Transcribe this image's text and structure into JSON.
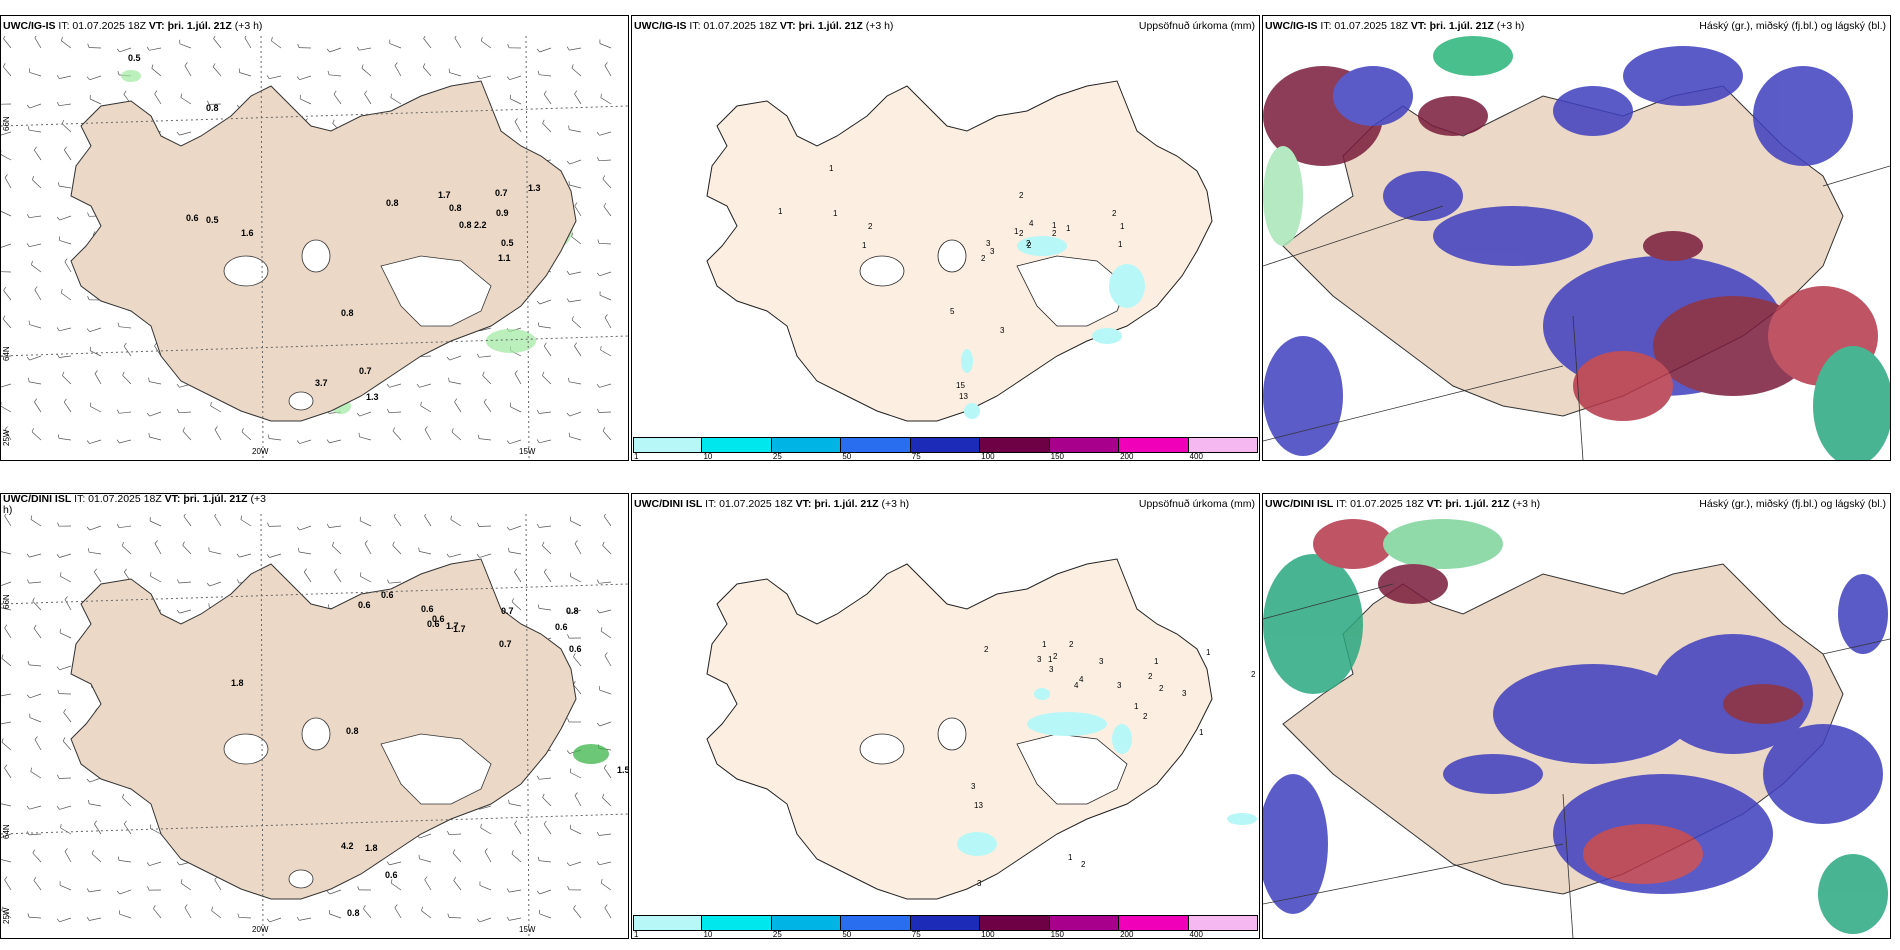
{
  "panels": {
    "p1": {
      "model": "UWC/IG-IS",
      "it": "IT: 01.07.2025 18Z",
      "vt_label": "VT:",
      "vt_value": "þri. 1.júl. 21Z",
      "offset": "(+3 h)"
    },
    "p2": {
      "model": "UWC/IG-IS",
      "it": "IT: 01.07.2025 18Z",
      "vt_label": "VT:",
      "vt_value": "þri. 1.júl. 21Z",
      "offset": "(+3 h)",
      "right": "Uppsöfnuð úrkoma (mm)"
    },
    "p3": {
      "model": "UWC/IG-IS",
      "it": "IT: 01.07.2025 18Z",
      "vt_label": "VT:",
      "vt_value": "þri. 1.júl. 21Z",
      "offset": "(+3 h)",
      "right": "Háský (gr.), miðský (fj.bl.) og lágský (bl.)"
    },
    "p4": {
      "model": "UWC/DINI ISL",
      "it": "IT: 01.07.2025 18Z",
      "vt_label": "VT:",
      "vt_value": "þri. 1.júl. 21Z",
      "offset": "(+3 h)"
    },
    "p5": {
      "model": "UWC/DINI ISL",
      "it": "IT: 01.07.2025 18Z",
      "vt_label": "VT:",
      "vt_value": "þri. 1.júl. 21Z",
      "offset": "(+3 h)",
      "right": "Uppsöfnuð úrkoma (mm)"
    },
    "p6": {
      "model": "UWC/DINI ISL",
      "it": "IT: 01.07.2025 18Z",
      "vt_label": "VT:",
      "vt_value": "þri. 1.júl. 21Z",
      "offset": "(+3 h)",
      "right": "Háský (gr.), miðský (fj.bl.) og lágský (bl.)"
    }
  },
  "axis": {
    "lon1": "20W",
    "lon2": "15W",
    "lat1": "66N",
    "lat2": "64N",
    "lon3": "25W"
  },
  "colorbar": {
    "labels": [
      "1",
      "10",
      "25",
      "50",
      "75",
      "100",
      "150",
      "200",
      "400"
    ],
    "colors": [
      "#b7f7f7",
      "#00e8ee",
      "#00b4e6",
      "#2a6ef0",
      "#1c2bb8",
      "#6e0046",
      "#a8008c",
      "#f000b8",
      "#f5b8f0"
    ]
  },
  "wind_labels_top": [
    "0.5",
    "0.8",
    "0.6",
    "0.5",
    "1.6",
    "0.8",
    "1.7",
    "0.8",
    "0.8",
    "2.2",
    "0.7",
    "0.9",
    "1.3",
    "0.5",
    "1.1",
    "0.8",
    "0.7",
    "3.7",
    "1.3"
  ],
  "precip_labels_top": [
    "1",
    "1",
    "1",
    "2",
    "1",
    "2",
    "1",
    "4",
    "2",
    "1",
    "2",
    "2",
    "1",
    "1",
    "2",
    "2",
    "3",
    "3",
    "2",
    "1",
    "5",
    "3",
    "15",
    "13"
  ],
  "wind_labels_bottom": [
    "0.6",
    "0.6",
    "0.6",
    "0.6",
    "0.6",
    "1.7",
    "1.7",
    "0.7",
    "0.7",
    "0.6",
    "0.8",
    "0.6",
    "0.8",
    "1.8",
    "4.2",
    "1.8",
    "0.6",
    "0.8",
    "1.5"
  ],
  "precip_labels_bottom": [
    "1",
    "3",
    "2",
    "3",
    "2",
    "2",
    "1",
    "3",
    "4",
    "4",
    "3",
    "2",
    "1",
    "2",
    "3",
    "1",
    "2",
    "1",
    "3",
    "13",
    "1",
    "2",
    "3",
    "1",
    "2"
  ]
}
